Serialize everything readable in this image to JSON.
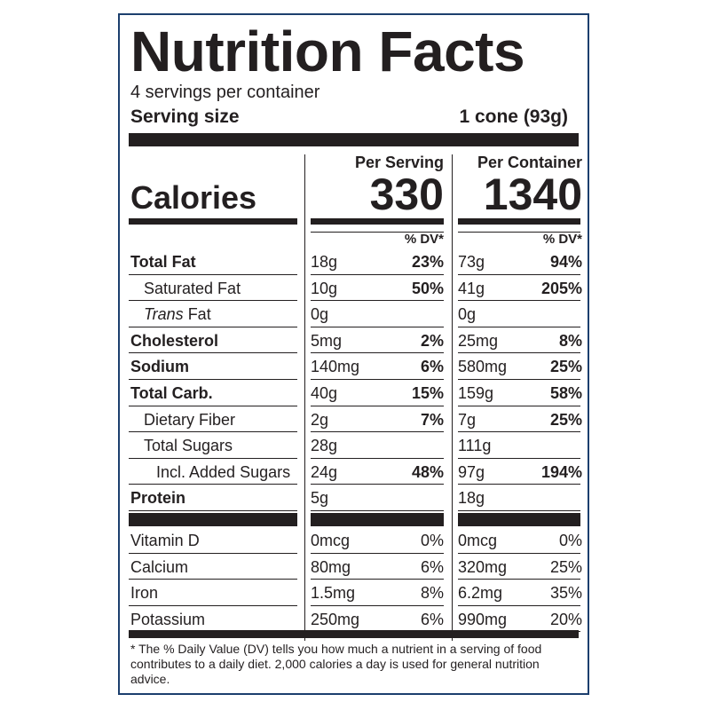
{
  "title": "Nutrition Facts",
  "servings_per_container": "4 servings per container",
  "serving_size_label": "Serving size",
  "serving_size_value": "1 cone (93g)",
  "columns": {
    "per_serving": "Per Serving",
    "per_container": "Per Container",
    "dv_header": "% DV*"
  },
  "calories": {
    "label": "Calories",
    "per_serving": "330",
    "per_container": "1340"
  },
  "nutrients": [
    {
      "label": "Total Fat",
      "label_parts": [
        "Total Fat"
      ],
      "bold": true,
      "indent": 0,
      "s_amt": "18g",
      "s_dv": "23%",
      "c_amt": "73g",
      "c_dv": "94%"
    },
    {
      "label": "Saturated Fat",
      "bold": false,
      "indent": 1,
      "s_amt": "10g",
      "s_dv": "50%",
      "c_amt": "41g",
      "c_dv": "205%"
    },
    {
      "label": "Trans Fat",
      "italic_word": "Trans",
      "rest": " Fat",
      "bold": false,
      "indent": 1,
      "s_amt": "0g",
      "s_dv": "",
      "c_amt": "0g",
      "c_dv": ""
    },
    {
      "label": "Cholesterol",
      "bold": true,
      "indent": 0,
      "s_amt": "5mg",
      "s_dv": "2%",
      "c_amt": "25mg",
      "c_dv": "8%"
    },
    {
      "label": "Sodium",
      "bold": true,
      "indent": 0,
      "s_amt": "140mg",
      "s_dv": "6%",
      "c_amt": "580mg",
      "c_dv": "25%"
    },
    {
      "label": "Total Carb.",
      "bold": true,
      "indent": 0,
      "s_amt": "40g",
      "s_dv": "15%",
      "c_amt": "159g",
      "c_dv": "58%"
    },
    {
      "label": "Dietary Fiber",
      "bold": false,
      "indent": 1,
      "s_amt": "2g",
      "s_dv": "7%",
      "c_amt": "7g",
      "c_dv": "25%"
    },
    {
      "label": "Total Sugars",
      "bold": false,
      "indent": 1,
      "s_amt": "28g",
      "s_dv": "",
      "c_amt": "111g",
      "c_dv": ""
    },
    {
      "label": "Incl. Added Sugars",
      "bold": false,
      "indent": 2,
      "s_amt": "24g",
      "s_dv": "48%",
      "c_amt": "97g",
      "c_dv": "194%"
    },
    {
      "label": "Protein",
      "bold": true,
      "indent": 0,
      "s_amt": "5g",
      "s_dv": "",
      "c_amt": "18g",
      "c_dv": ""
    }
  ],
  "vitamins": [
    {
      "label": "Vitamin D",
      "s_amt": "0mcg",
      "s_dv": "0%",
      "c_amt": "0mcg",
      "c_dv": "0%"
    },
    {
      "label": "Calcium",
      "s_amt": "80mg",
      "s_dv": "6%",
      "c_amt": "320mg",
      "c_dv": "25%"
    },
    {
      "label": "Iron",
      "s_amt": "1.5mg",
      "s_dv": "8%",
      "c_amt": "6.2mg",
      "c_dv": "35%"
    },
    {
      "label": "Potassium",
      "s_amt": "250mg",
      "s_dv": "6%",
      "c_amt": "990mg",
      "c_dv": "20%"
    }
  ],
  "footnote": "* The % Daily Value (DV) tells you how much a nutrient in a serving of food contributes to a daily diet. 2,000 calories a day is used for general nutrition advice."
}
